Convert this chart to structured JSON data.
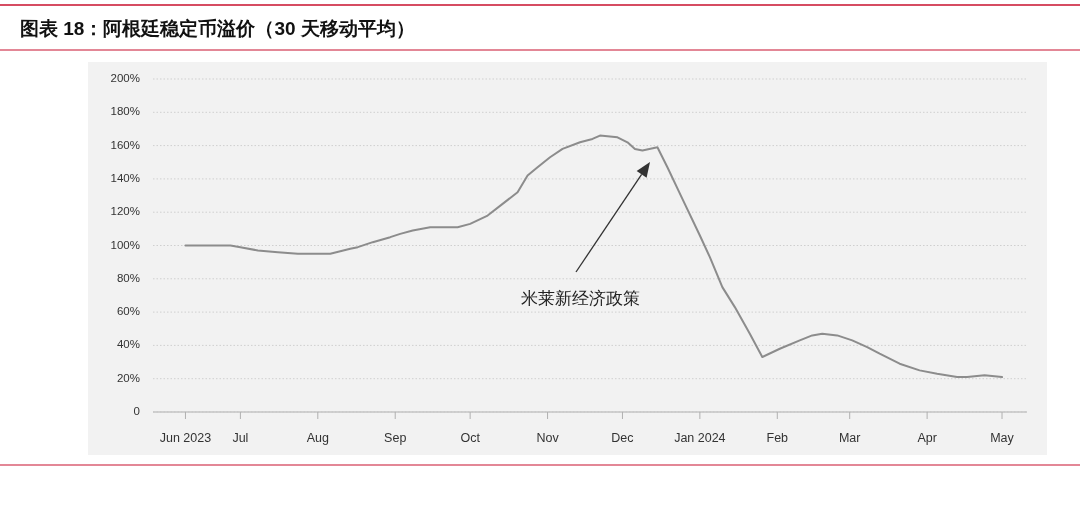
{
  "chart_data": {
    "type": "line",
    "title": "图表 18：阿根廷稳定币溢价（30 天移动平均）",
    "x": [
      "2023-06-09",
      "2023-06-15",
      "2023-06-19",
      "2023-06-27",
      "2023-07-01",
      "2023-07-08",
      "2023-07-16",
      "2023-07-24",
      "2023-08-01",
      "2023-08-06",
      "2023-08-14",
      "2023-08-17",
      "2023-08-23",
      "2023-08-30",
      "2023-09-03",
      "2023-09-08",
      "2023-09-15",
      "2023-09-24",
      "2023-09-26",
      "2023-10-01",
      "2023-10-08",
      "2023-10-14",
      "2023-10-20",
      "2023-10-24",
      "2023-10-28",
      "2023-11-02",
      "2023-11-07",
      "2023-11-14",
      "2023-11-19",
      "2023-11-22",
      "2023-11-29",
      "2023-12-03",
      "2023-12-06",
      "2023-12-09",
      "2023-12-15",
      "2023-12-19",
      "2023-12-25",
      "2024-01-01",
      "2024-01-05",
      "2024-01-10",
      "2024-01-15",
      "2024-01-21",
      "2024-01-26",
      "2024-02-02",
      "2024-02-10",
      "2024-02-15",
      "2024-02-19",
      "2024-02-25",
      "2024-03-02",
      "2024-03-08",
      "2024-03-13",
      "2024-03-21",
      "2024-03-29",
      "2024-04-05",
      "2024-04-13",
      "2024-04-17",
      "2024-04-24",
      "2024-05-01"
    ],
    "values": [
      100,
      100,
      100,
      100,
      99,
      97,
      96,
      95,
      95,
      95,
      98,
      99,
      102,
      105,
      107,
      109,
      111,
      111,
      111,
      113,
      118,
      125,
      132,
      142,
      147,
      153,
      158,
      162,
      164,
      166,
      165,
      162,
      158,
      157,
      159,
      147,
      128,
      106,
      93,
      75,
      63,
      47,
      33,
      38,
      43,
      46,
      47,
      46,
      43,
      39,
      35,
      29,
      25,
      23,
      21,
      21,
      22,
      21
    ],
    "color": "#8c8c8c",
    "xlim": [
      "2023-05-27",
      "2024-05-11"
    ],
    "xticks": [
      {
        "value": "2023-06-09",
        "label": "Jun 2023"
      },
      {
        "value": "2023-07-01",
        "label": "Jul"
      },
      {
        "value": "2023-08-01",
        "label": "Aug"
      },
      {
        "value": "2023-09-01",
        "label": "Sep"
      },
      {
        "value": "2023-10-01",
        "label": "Oct"
      },
      {
        "value": "2023-11-01",
        "label": "Nov"
      },
      {
        "value": "2023-12-01",
        "label": "Dec"
      },
      {
        "value": "2024-01-01",
        "label": "Jan 2024"
      },
      {
        "value": "2024-02-01",
        "label": "Feb"
      },
      {
        "value": "2024-03-01",
        "label": "Mar"
      },
      {
        "value": "2024-04-01",
        "label": "Apr"
      },
      {
        "value": "2024-05-01",
        "label": "May"
      }
    ],
    "ylim": [
      0,
      200
    ],
    "yticks": [
      0,
      {
        "value": 20,
        "label": "20%"
      },
      {
        "value": 40,
        "label": "40%"
      },
      {
        "value": 60,
        "label": "60%"
      },
      {
        "value": 80,
        "label": "80%"
      },
      {
        "value": 100,
        "label": "100%"
      },
      {
        "value": 120,
        "label": "120%"
      },
      {
        "value": 140,
        "label": "140%"
      },
      {
        "value": 160,
        "label": "160%"
      },
      {
        "value": 180,
        "label": "180%"
      },
      {
        "value": 200,
        "label": "200%"
      }
    ],
    "grid": "y",
    "annotations": [
      "米莱新经济政策"
    ]
  }
}
